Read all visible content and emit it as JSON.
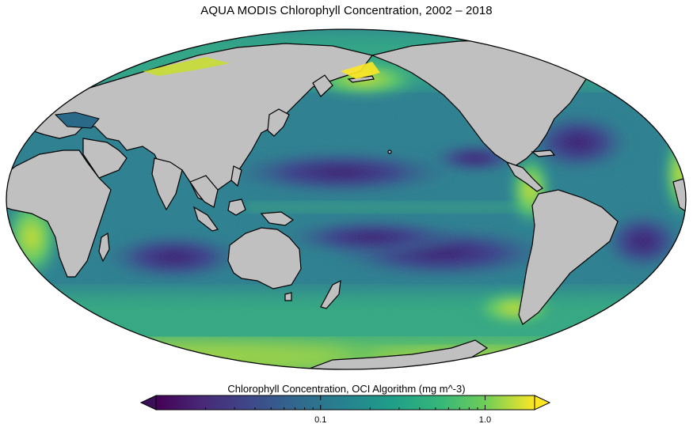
{
  "title": "AQUA MODIS Chlorophyll Concentration, 2002 – 2018",
  "map": {
    "projection": "mollweide",
    "central_meridian": "150E",
    "land_color": "#c0c0c0",
    "coastline_color": "#000000"
  },
  "colorbar": {
    "label": "Chlorophyll Concentration, OCI Algorithm (mg m^-3)",
    "scale": "log",
    "colormap": "viridis",
    "range": [
      0.01,
      2.0
    ],
    "ticks": [
      {
        "value": 0.1,
        "label": "0.1"
      },
      {
        "value": 1.0,
        "label": "1.0"
      }
    ],
    "extend": "both",
    "under_color": "#3b0f5a",
    "over_color": "#fde725"
  },
  "colors": {
    "viridis_low": "#440154",
    "viridis_mid": "#21918c",
    "viridis_high": "#fde725"
  }
}
